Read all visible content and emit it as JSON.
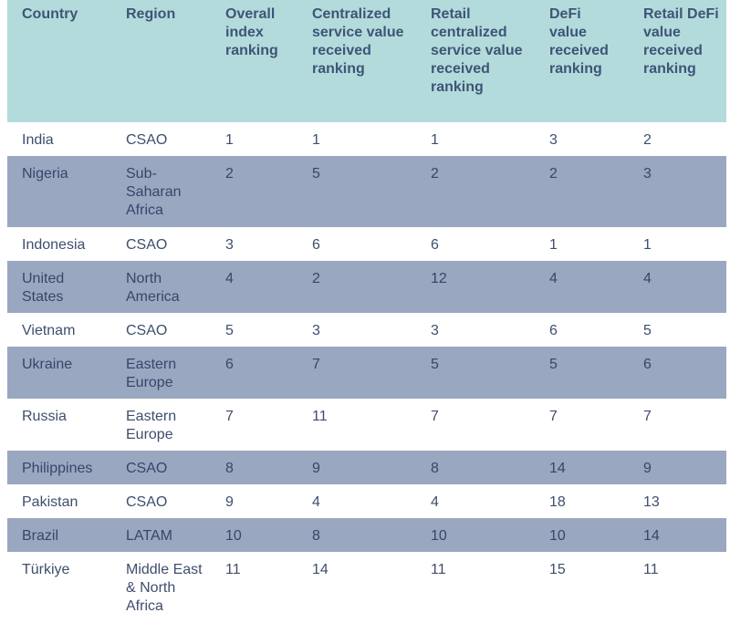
{
  "table": {
    "headers": [
      "Country",
      "Region",
      "Overall index ranking",
      "Centralized service value received ranking",
      "Retail centralized service value received ranking",
      "DeFi value received ranking",
      "Retail DeFi value received ranking"
    ],
    "rows": [
      [
        "India",
        "CSAO",
        "1",
        "1",
        "1",
        "3",
        "2"
      ],
      [
        "Nigeria",
        "Sub-Saharan Africa",
        "2",
        "5",
        "2",
        "2",
        "3"
      ],
      [
        "Indonesia",
        "CSAO",
        "3",
        "6",
        "6",
        "1",
        "1"
      ],
      [
        "United States",
        "North America",
        "4",
        "2",
        "12",
        "4",
        "4"
      ],
      [
        "Vietnam",
        "CSAO",
        "5",
        "3",
        "3",
        "6",
        "5"
      ],
      [
        "Ukraine",
        "Eastern Europe",
        "6",
        "7",
        "5",
        "5",
        "6"
      ],
      [
        "Russia",
        "Eastern Europe",
        "7",
        "11",
        "7",
        "7",
        "7"
      ],
      [
        "Philippines",
        "CSAO",
        "8",
        "9",
        "8",
        "14",
        "9"
      ],
      [
        "Pakistan",
        "CSAO",
        "9",
        "4",
        "4",
        "18",
        "13"
      ],
      [
        "Brazil",
        "LATAM",
        "10",
        "8",
        "10",
        "10",
        "14"
      ],
      [
        "Türkiye",
        "Middle East & North Africa",
        "11",
        "14",
        "11",
        "15",
        "11"
      ]
    ]
  },
  "colors": {
    "header_bg": "#b4dbdb",
    "row_light": "#ffffff",
    "row_dark": "#9aa7c0",
    "text": "#3f4e6d"
  }
}
